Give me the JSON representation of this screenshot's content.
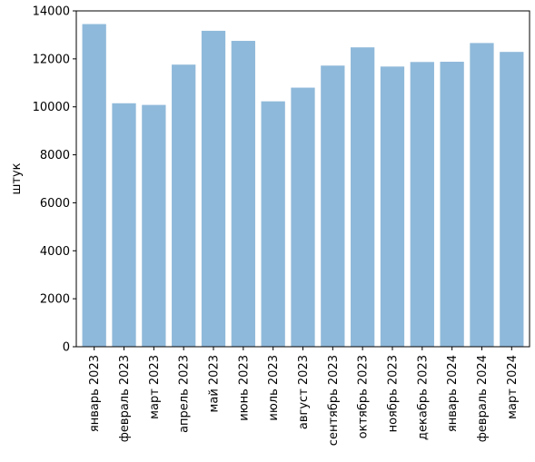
{
  "chart_data": {
    "type": "bar",
    "ylabel": "штук",
    "xlabel": "",
    "ylim": [
      0,
      14000
    ],
    "yticks": [
      0,
      2000,
      4000,
      6000,
      8000,
      10000,
      12000,
      14000
    ],
    "bar_color": "#8fb9da",
    "categories": [
      "январь 2023",
      "февраль 2023",
      "март 2023",
      "апрель 2023",
      "май 2023",
      "июнь 2023",
      "июль 2023",
      "август 2023",
      "сентябрь 2023",
      "октябрь 2023",
      "ноябрь 2023",
      "декабрь 2023",
      "январь 2024",
      "февраль 2024",
      "март 2024"
    ],
    "values": [
      13450,
      10150,
      10080,
      11760,
      13170,
      12750,
      10230,
      10800,
      11720,
      12480,
      11680,
      11870,
      11880,
      12660,
      12290
    ]
  }
}
